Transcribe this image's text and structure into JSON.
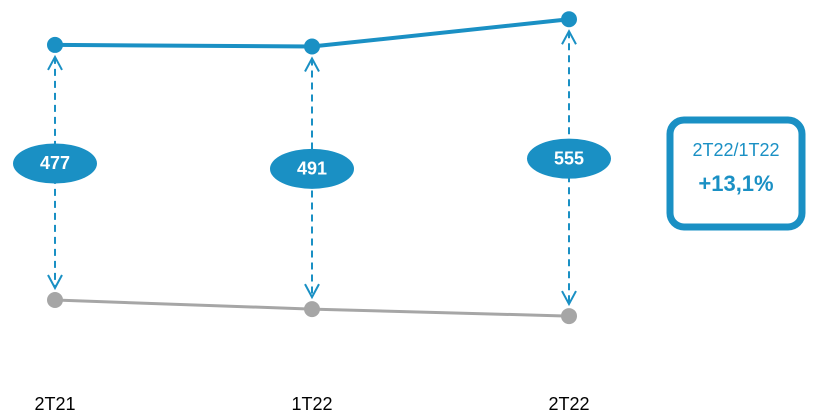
{
  "chart_data": {
    "type": "line",
    "categories": [
      "2T21",
      "1T22",
      "2T22"
    ],
    "series": [
      {
        "name": null,
        "color": "#1a90c4",
        "values": [
          537,
          534,
          585
        ]
      },
      {
        "name": null,
        "color": "#a6a6a6",
        "values": [
          60,
          43,
          30
        ]
      }
    ],
    "spreads": [
      477,
      491,
      555
    ],
    "ylim": [
      -155,
      621
    ],
    "badge": {
      "title": "2T22/1T22",
      "value": "+13,1%",
      "color": "#1a90c4"
    }
  }
}
